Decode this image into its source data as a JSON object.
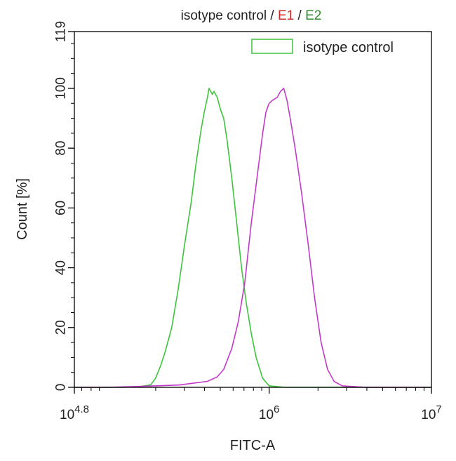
{
  "chart_data": {
    "type": "line",
    "title_parts": [
      {
        "text": "isotype control",
        "color": "#222222"
      },
      {
        "text": " / ",
        "color": "#222222"
      },
      {
        "text": "E1",
        "color": "#cc2a2a"
      },
      {
        "text": " / ",
        "color": "#222222"
      },
      {
        "text": "E2",
        "color": "#2e8b2e"
      }
    ],
    "xlabel": "FITC-A",
    "ylabel": "Count  [%]",
    "x_scale": "log10",
    "xlim_exponent": [
      4.8,
      7
    ],
    "x_ticks": [
      {
        "exponent": 4.8,
        "base": "10",
        "exp": "4.8"
      },
      {
        "exponent": 6,
        "base": "10",
        "exp": "6"
      },
      {
        "exponent": 7,
        "base": "10",
        "exp": "7"
      }
    ],
    "ylim": [
      0,
      119
    ],
    "y_ticks": [
      "0",
      "20",
      "40",
      "60",
      "80",
      "100",
      "119"
    ],
    "legend": {
      "position": "top-right",
      "label": "isotype control"
    },
    "series": [
      {
        "name": "isotype control",
        "color": "#3dc43d",
        "points": [
          [
            4.8,
            0
          ],
          [
            5.1,
            0
          ],
          [
            5.2,
            0.2
          ],
          [
            5.27,
            0.8
          ],
          [
            5.3,
            3
          ],
          [
            5.33,
            7
          ],
          [
            5.36,
            12
          ],
          [
            5.4,
            20
          ],
          [
            5.44,
            33
          ],
          [
            5.48,
            48
          ],
          [
            5.52,
            62
          ],
          [
            5.55,
            75
          ],
          [
            5.58,
            86
          ],
          [
            5.6,
            92
          ],
          [
            5.62,
            97
          ],
          [
            5.63,
            100
          ],
          [
            5.65,
            98
          ],
          [
            5.66,
            99
          ],
          [
            5.68,
            97
          ],
          [
            5.7,
            93
          ],
          [
            5.72,
            90
          ],
          [
            5.74,
            83
          ],
          [
            5.77,
            70
          ],
          [
            5.8,
            55
          ],
          [
            5.83,
            40
          ],
          [
            5.86,
            28
          ],
          [
            5.89,
            18
          ],
          [
            5.92,
            10
          ],
          [
            5.96,
            3
          ],
          [
            6.0,
            0.5
          ],
          [
            6.1,
            0
          ],
          [
            7,
            0
          ]
        ]
      },
      {
        "name": "",
        "color": "#c23ac8",
        "points": [
          [
            4.8,
            0
          ],
          [
            5.0,
            0
          ],
          [
            5.2,
            0.3
          ],
          [
            5.3,
            0.5
          ],
          [
            5.45,
            0.8
          ],
          [
            5.55,
            1.5
          ],
          [
            5.62,
            2
          ],
          [
            5.68,
            3.5
          ],
          [
            5.72,
            6
          ],
          [
            5.77,
            13
          ],
          [
            5.81,
            22
          ],
          [
            5.85,
            35
          ],
          [
            5.89,
            55
          ],
          [
            5.93,
            72
          ],
          [
            5.96,
            85
          ],
          [
            5.98,
            92
          ],
          [
            6.0,
            95
          ],
          [
            6.02,
            96
          ],
          [
            6.05,
            97
          ],
          [
            6.07,
            99
          ],
          [
            6.09,
            100
          ],
          [
            6.11,
            96
          ],
          [
            6.13,
            90
          ],
          [
            6.16,
            80
          ],
          [
            6.2,
            65
          ],
          [
            6.24,
            48
          ],
          [
            6.28,
            30
          ],
          [
            6.32,
            15
          ],
          [
            6.36,
            6
          ],
          [
            6.4,
            2
          ],
          [
            6.45,
            0.5
          ],
          [
            6.6,
            0
          ],
          [
            7,
            0
          ]
        ]
      }
    ]
  }
}
